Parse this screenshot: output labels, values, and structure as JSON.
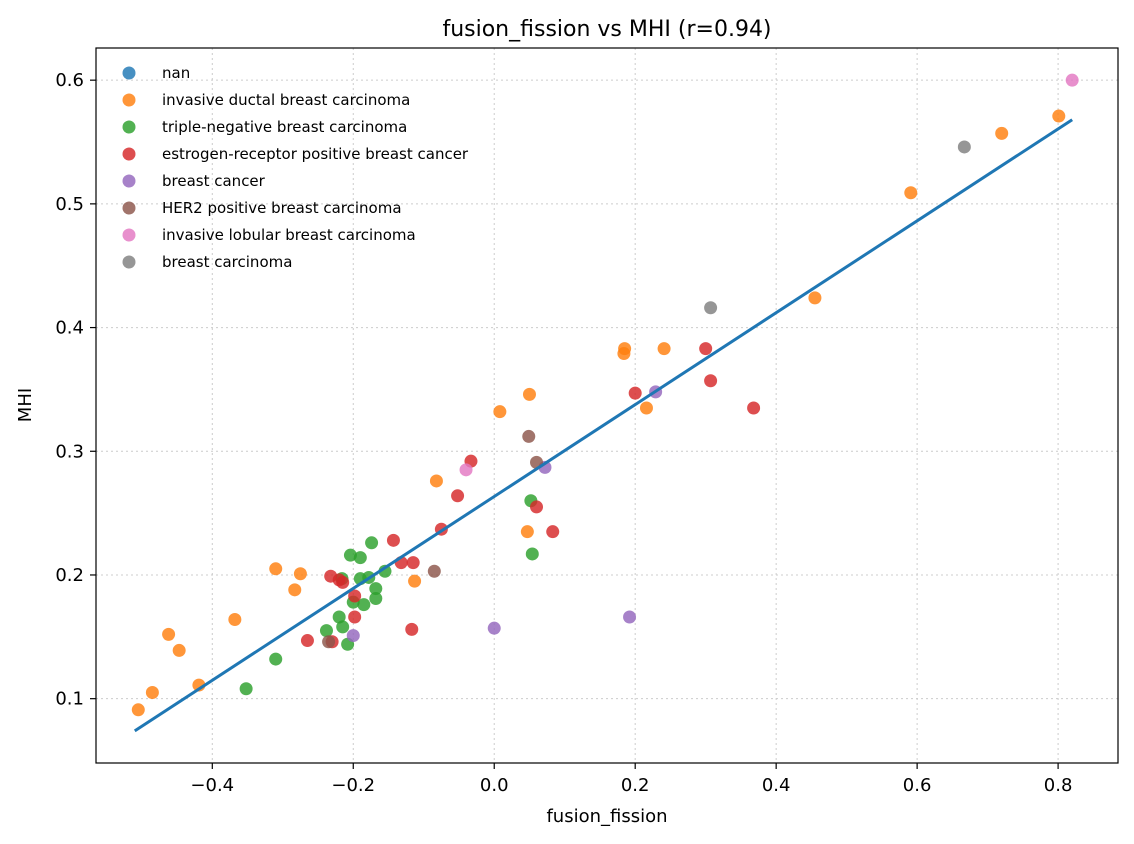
{
  "chart_data": {
    "type": "scatter",
    "title": "fusion_fission vs MHI  (r=0.94)",
    "xlabel": "fusion_fission",
    "ylabel": "MHI",
    "xlim": [
      -0.565,
      0.885
    ],
    "ylim": [
      0.048,
      0.626
    ],
    "xticks": [
      -0.4,
      -0.2,
      0.0,
      0.2,
      0.4,
      0.6,
      0.8
    ],
    "xtick_labels": [
      "−0.4",
      "−0.2",
      "0.0",
      "0.2",
      "0.4",
      "0.6",
      "0.8"
    ],
    "yticks": [
      0.1,
      0.2,
      0.3,
      0.4,
      0.5,
      0.6
    ],
    "ytick_labels": [
      "0.1",
      "0.2",
      "0.3",
      "0.4",
      "0.5",
      "0.6"
    ],
    "grid": true,
    "legend_position": "top-left",
    "fit_line": {
      "x": [
        -0.51,
        0.82
      ],
      "y": [
        0.074,
        0.568
      ],
      "color": "#1f77b4"
    },
    "series": [
      {
        "name": "nan",
        "color": "#1f77b4",
        "points": []
      },
      {
        "name": "invasive ductal breast carcinoma",
        "color": "#ff7f0e",
        "points": [
          [
            -0.505,
            0.091
          ],
          [
            -0.485,
            0.105
          ],
          [
            -0.462,
            0.152
          ],
          [
            -0.447,
            0.139
          ],
          [
            -0.419,
            0.111
          ],
          [
            -0.368,
            0.164
          ],
          [
            -0.31,
            0.205
          ],
          [
            -0.283,
            0.188
          ],
          [
            -0.275,
            0.201
          ],
          [
            -0.082,
            0.276
          ],
          [
            -0.113,
            0.195
          ],
          [
            0.008,
            0.332
          ],
          [
            0.05,
            0.346
          ],
          [
            0.047,
            0.235
          ],
          [
            0.185,
            0.383
          ],
          [
            0.184,
            0.379
          ],
          [
            0.241,
            0.383
          ],
          [
            0.216,
            0.335
          ],
          [
            0.455,
            0.424
          ],
          [
            0.591,
            0.509
          ],
          [
            0.72,
            0.557
          ],
          [
            0.801,
            0.571
          ]
        ]
      },
      {
        "name": "triple-negative breast carcinoma",
        "color": "#2ca02c",
        "points": [
          [
            -0.352,
            0.108
          ],
          [
            -0.31,
            0.132
          ],
          [
            -0.238,
            0.155
          ],
          [
            -0.22,
            0.166
          ],
          [
            -0.215,
            0.158
          ],
          [
            -0.208,
            0.144
          ],
          [
            -0.216,
            0.197
          ],
          [
            -0.204,
            0.216
          ],
          [
            -0.19,
            0.214
          ],
          [
            -0.19,
            0.197
          ],
          [
            -0.178,
            0.198
          ],
          [
            -0.174,
            0.226
          ],
          [
            -0.168,
            0.181
          ],
          [
            -0.168,
            0.189
          ],
          [
            -0.155,
            0.203
          ],
          [
            -0.2,
            0.178
          ],
          [
            -0.185,
            0.176
          ],
          [
            0.052,
            0.26
          ],
          [
            0.054,
            0.217
          ]
        ]
      },
      {
        "name": "estrogen-receptor positive breast cancer",
        "color": "#d62728",
        "points": [
          [
            -0.265,
            0.147
          ],
          [
            -0.23,
            0.146
          ],
          [
            -0.232,
            0.199
          ],
          [
            -0.22,
            0.196
          ],
          [
            -0.215,
            0.194
          ],
          [
            -0.198,
            0.183
          ],
          [
            -0.198,
            0.166
          ],
          [
            -0.143,
            0.228
          ],
          [
            -0.132,
            0.21
          ],
          [
            -0.115,
            0.21
          ],
          [
            -0.117,
            0.156
          ],
          [
            -0.075,
            0.237
          ],
          [
            -0.052,
            0.264
          ],
          [
            -0.033,
            0.292
          ],
          [
            0.06,
            0.255
          ],
          [
            0.083,
            0.235
          ],
          [
            0.2,
            0.347
          ],
          [
            0.3,
            0.383
          ],
          [
            0.307,
            0.357
          ],
          [
            0.368,
            0.335
          ]
        ]
      },
      {
        "name": "breast cancer",
        "color": "#9467bd",
        "points": [
          [
            -0.2,
            0.151
          ],
          [
            0.0,
            0.157
          ],
          [
            0.072,
            0.287
          ],
          [
            0.229,
            0.348
          ],
          [
            0.192,
            0.166
          ]
        ]
      },
      {
        "name": "HER2 positive breast carcinoma",
        "color": "#8c564b",
        "points": [
          [
            -0.235,
            0.146
          ],
          [
            -0.085,
            0.203
          ],
          [
            0.049,
            0.312
          ],
          [
            0.06,
            0.291
          ]
        ]
      },
      {
        "name": "invasive lobular breast carcinoma",
        "color": "#e377c2",
        "points": [
          [
            -0.04,
            0.285
          ],
          [
            0.82,
            0.6
          ]
        ]
      },
      {
        "name": "breast carcinoma",
        "color": "#7f7f7f",
        "points": [
          [
            0.667,
            0.546
          ],
          [
            0.307,
            0.416
          ]
        ]
      }
    ]
  }
}
